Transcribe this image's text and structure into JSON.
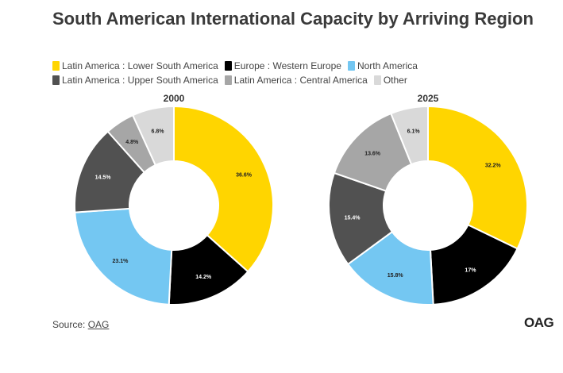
{
  "title": "South American International Capacity by Arriving Region",
  "colors": {
    "lower_south_america": "#FFD500",
    "western_europe": "#000000",
    "north_america": "#74C7F2",
    "upper_south_america": "#515151",
    "central_america": "#A6A6A6",
    "other": "#D9D9D9"
  },
  "legend": [
    {
      "label": "Latin America : Lower South America",
      "color": "#FFD500"
    },
    {
      "label": "Europe : Western Europe",
      "color": "#000000"
    },
    {
      "label": "North America",
      "color": "#74C7F2"
    },
    {
      "label": "Latin America : Upper South America",
      "color": "#515151"
    },
    {
      "label": "Latin America : Central America",
      "color": "#A6A6A6"
    },
    {
      "label": "Other",
      "color": "#D9D9D9"
    }
  ],
  "chart_data": [
    {
      "type": "pie",
      "title": "2000",
      "categories": [
        "Latin America : Lower South America",
        "Europe : Western Europe",
        "North America",
        "Latin America : Upper South America",
        "Latin America : Central America",
        "Other"
      ],
      "values": [
        36.6,
        14.2,
        23.1,
        14.5,
        4.8,
        6.8
      ],
      "labels": [
        "36.6%",
        "14.2%",
        "23.1%",
        "14.5%",
        "4.8%",
        "6.8%"
      ]
    },
    {
      "type": "pie",
      "title": "2025",
      "categories": [
        "Latin America : Lower South America",
        "Europe : Western Europe",
        "North America",
        "Latin America : Upper South America",
        "Latin America : Central America",
        "Other"
      ],
      "values": [
        32.2,
        17,
        15.8,
        15.4,
        13.6,
        6.1
      ],
      "labels": [
        "32.2%",
        "17%",
        "15.8%",
        "15.4%",
        "13.6%",
        "6.1%"
      ]
    }
  ],
  "source": {
    "prefix": "Source: ",
    "link": "OAG"
  },
  "logo": "OAG"
}
